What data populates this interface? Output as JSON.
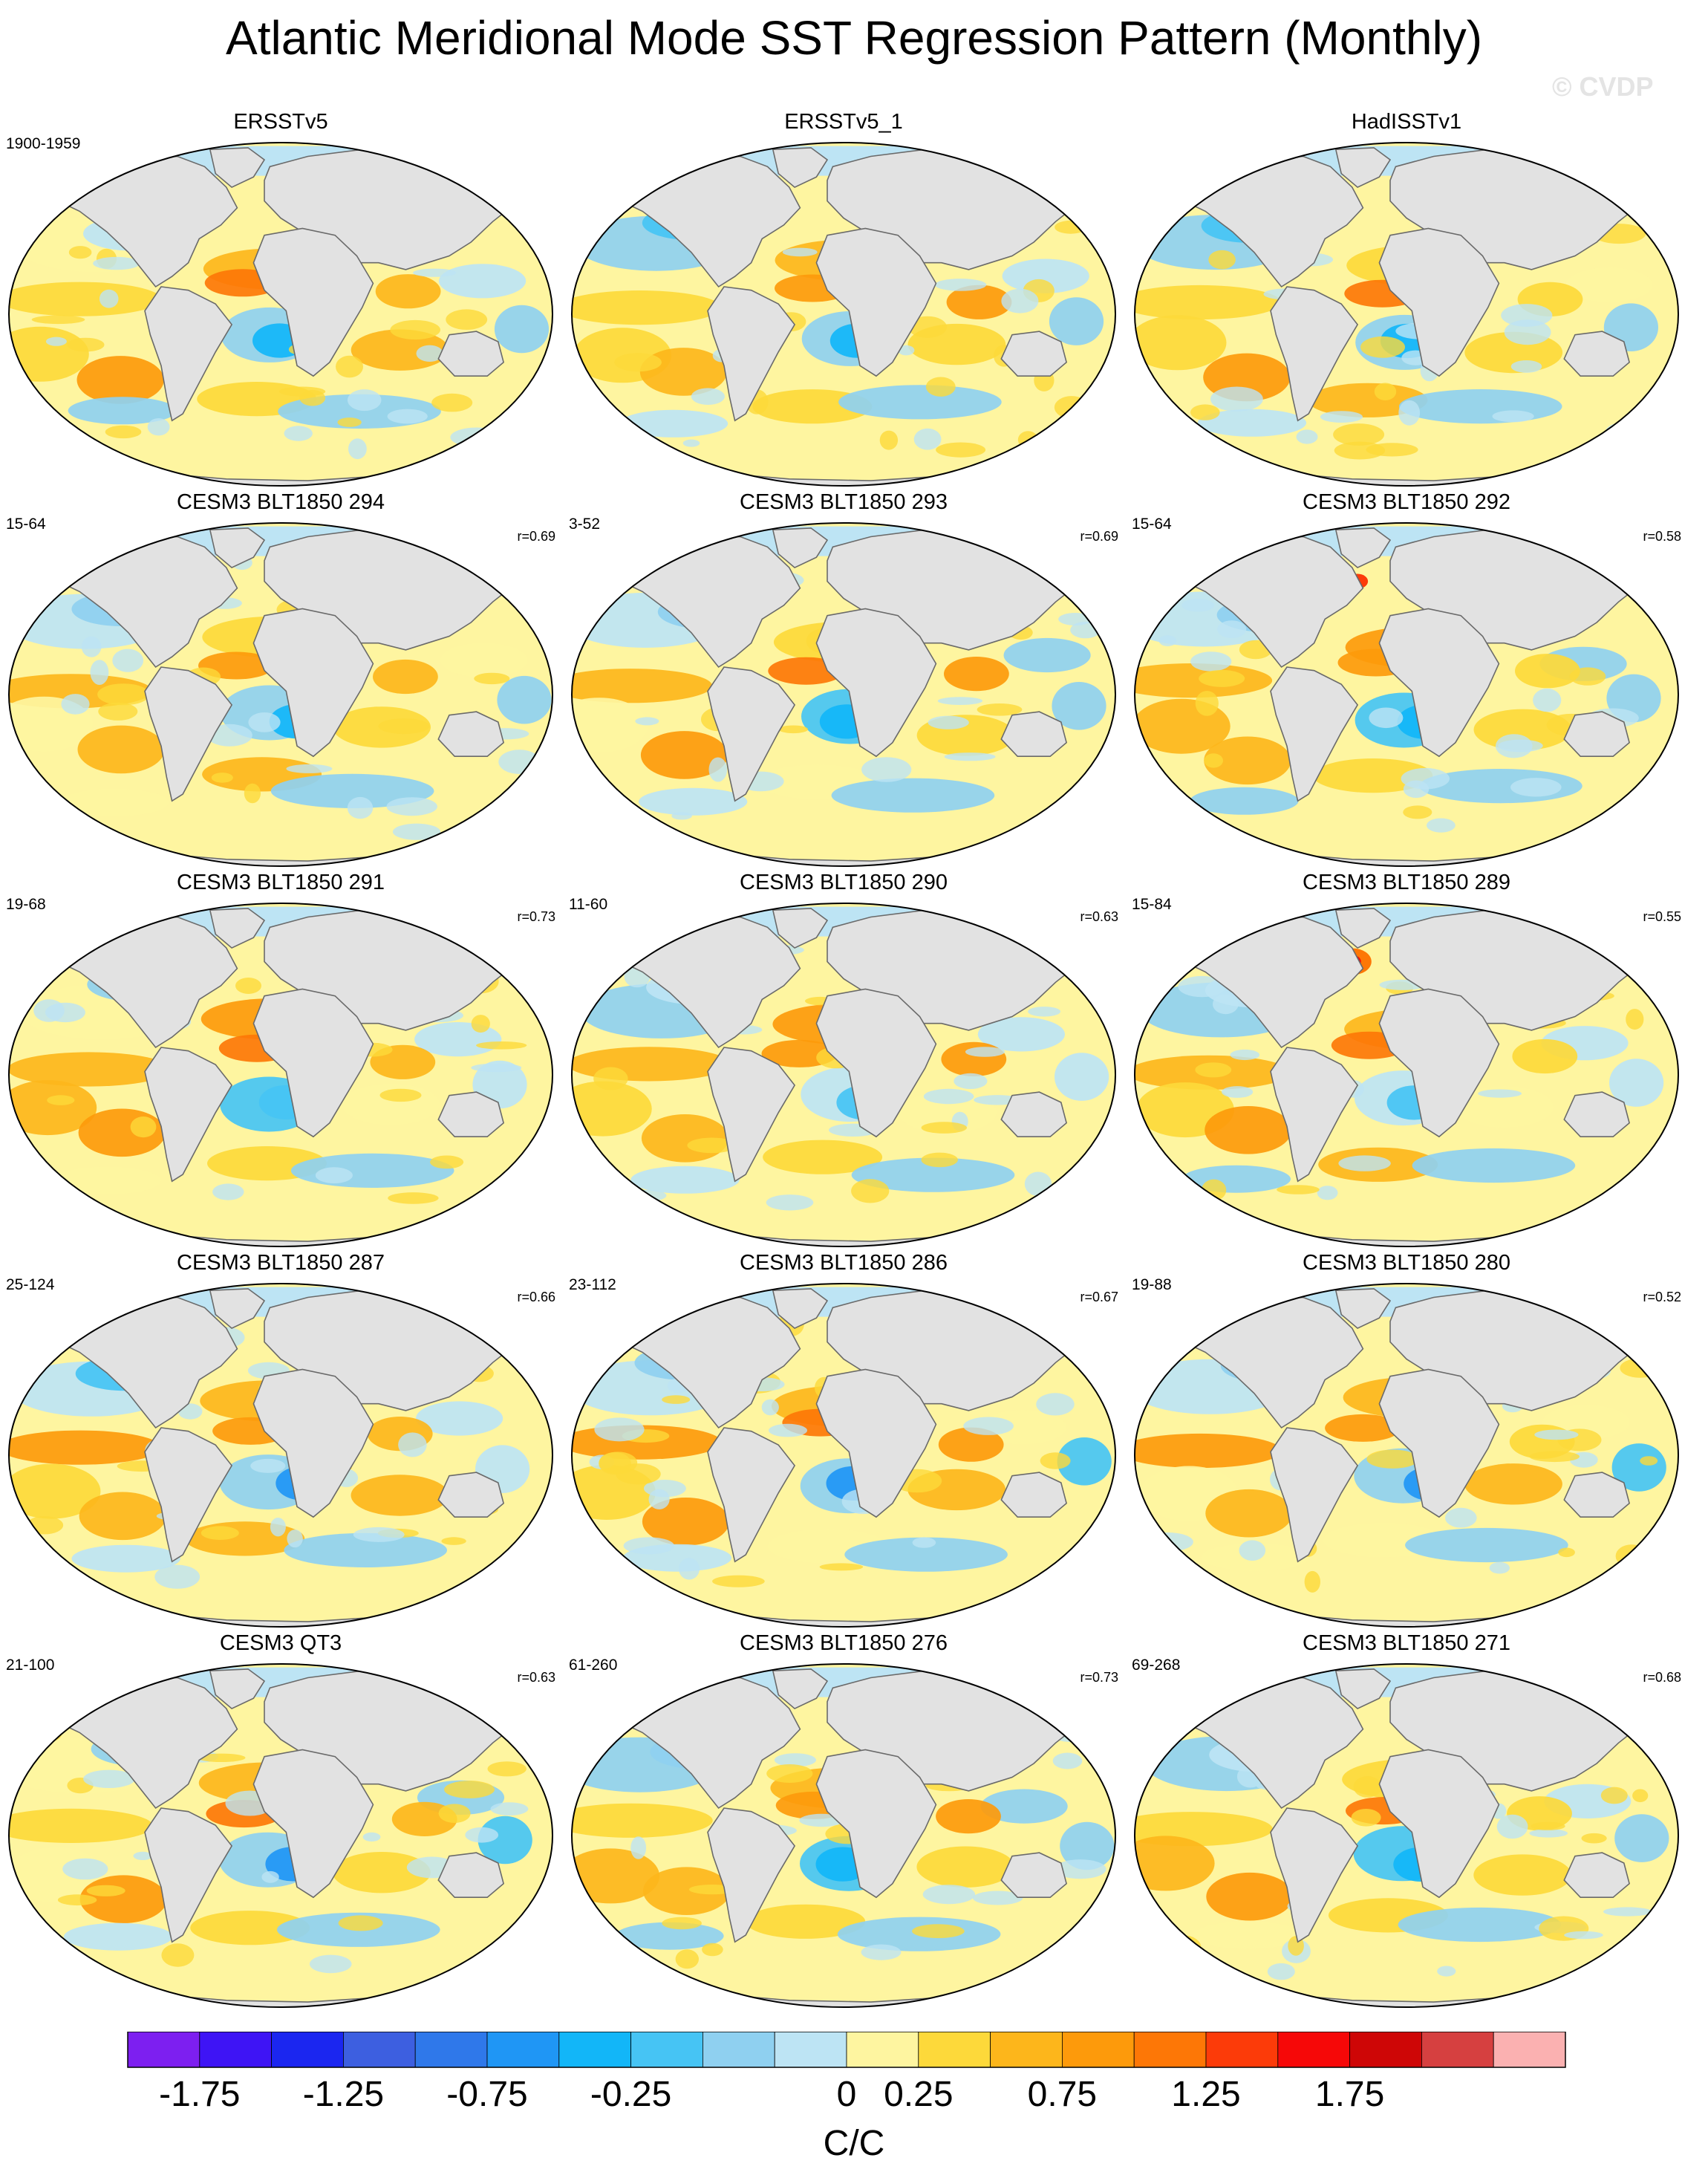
{
  "title": "Atlantic Meridional Mode SST Regression Pattern (Monthly)",
  "watermark": "© CVDP",
  "colors": {
    "land": "#e2e2e2",
    "coast": "#6a6a6a",
    "ocean_base": "#fef5a0"
  },
  "panels": [
    {
      "title": "ERSSTv5",
      "period": "1900-1959",
      "r": ""
    },
    {
      "title": "ERSSTv5_1",
      "period": "",
      "r": ""
    },
    {
      "title": "HadISSTv1",
      "period": "",
      "r": ""
    },
    {
      "title": "CESM3 BLT1850 294",
      "period": "15-64",
      "r": "r=0.69"
    },
    {
      "title": "CESM3 BLT1850 293",
      "period": "3-52",
      "r": "r=0.69"
    },
    {
      "title": "CESM3 BLT1850 292",
      "period": "15-64",
      "r": "r=0.58"
    },
    {
      "title": "CESM3 BLT1850 291",
      "period": "19-68",
      "r": "r=0.73"
    },
    {
      "title": "CESM3 BLT1850 290",
      "period": "11-60",
      "r": "r=0.63"
    },
    {
      "title": "CESM3 BLT1850 289",
      "period": "15-84",
      "r": "r=0.55"
    },
    {
      "title": "CESM3 BLT1850 287",
      "period": "25-124",
      "r": "r=0.66"
    },
    {
      "title": "CESM3 BLT1850 286",
      "period": "23-112",
      "r": "r=0.67"
    },
    {
      "title": "CESM3 BLT1850 280",
      "period": "19-88",
      "r": "r=0.52"
    },
    {
      "title": "CESM3 QT3",
      "period": "21-100",
      "r": "r=0.63"
    },
    {
      "title": "CESM3 BLT1850 276",
      "period": "61-260",
      "r": "r=0.73"
    },
    {
      "title": "CESM3 BLT1850 271",
      "period": "69-268",
      "r": "r=0.68"
    }
  ],
  "colorbar": {
    "units": "C/C",
    "colors": [
      "#7d1ff0",
      "#3e14f5",
      "#1b26f0",
      "#3d5fe0",
      "#2f78ea",
      "#1f96f5",
      "#12b6f8",
      "#46c4f4",
      "#8fd0f0",
      "#bde4f4",
      "#fef5a0",
      "#fdd93a",
      "#fdb61b",
      "#fd9a0b",
      "#fd7706",
      "#fc3b09",
      "#f60808",
      "#ce0606",
      "#d64040",
      "#fbb1b1"
    ],
    "labels": [
      "-1.75",
      "-1.25",
      "-0.75",
      "-0.25",
      "0",
      "0.25",
      "0.75",
      "1.25",
      "1.75"
    ]
  }
}
